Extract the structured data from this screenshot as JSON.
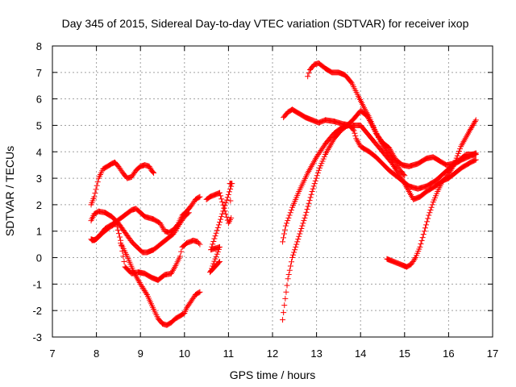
{
  "chart_data": {
    "type": "scatter",
    "title": "Day 345 of 2015, Sidereal Day-to-day VTEC variation (SDTVAR) for receiver ixop",
    "xlabel": "GPS time / hours",
    "ylabel": "SDTVAR / TECUs",
    "xlim": [
      7,
      17
    ],
    "ylim": [
      -3,
      8
    ],
    "xticks": [
      "7",
      "8",
      "9",
      "10",
      "11",
      "12",
      "13",
      "14",
      "15",
      "16",
      "17"
    ],
    "yticks": [
      "-3",
      "-2",
      "-1",
      "0",
      "1",
      "2",
      "3",
      "4",
      "5",
      "6",
      "7",
      "8"
    ],
    "grid": true,
    "legend": "none",
    "marker": "+",
    "series_color": "#ff0000",
    "tracks": [
      [
        [
          7.88,
          2.0
        ],
        [
          7.95,
          2.3
        ],
        [
          8.05,
          3.0
        ],
        [
          8.15,
          3.35
        ],
        [
          8.25,
          3.45
        ],
        [
          8.35,
          3.55
        ],
        [
          8.42,
          3.6
        ],
        [
          8.5,
          3.45
        ],
        [
          8.6,
          3.2
        ],
        [
          8.7,
          3.0
        ],
        [
          8.8,
          3.05
        ],
        [
          8.9,
          3.3
        ],
        [
          9.0,
          3.45
        ],
        [
          9.1,
          3.5
        ],
        [
          9.2,
          3.45
        ],
        [
          9.25,
          3.3
        ],
        [
          9.3,
          3.2
        ]
      ],
      [
        [
          7.88,
          0.7
        ],
        [
          7.95,
          0.65
        ],
        [
          8.05,
          0.8
        ],
        [
          8.2,
          1.1
        ],
        [
          8.4,
          1.3
        ],
        [
          8.6,
          1.55
        ],
        [
          8.8,
          1.8
        ],
        [
          8.9,
          1.85
        ],
        [
          9.0,
          1.7
        ],
        [
          9.1,
          1.55
        ],
        [
          9.2,
          1.5
        ],
        [
          9.3,
          1.45
        ],
        [
          9.45,
          1.3
        ],
        [
          9.55,
          1.0
        ],
        [
          9.65,
          0.95
        ],
        [
          9.75,
          1.05
        ],
        [
          9.85,
          1.25
        ],
        [
          9.95,
          1.6
        ],
        [
          10.05,
          1.75
        ],
        [
          10.15,
          1.95
        ],
        [
          10.25,
          2.2
        ],
        [
          10.35,
          2.3
        ]
      ],
      [
        [
          7.88,
          1.4
        ],
        [
          7.95,
          1.65
        ],
        [
          8.05,
          1.75
        ],
        [
          8.2,
          1.7
        ],
        [
          8.35,
          1.55
        ],
        [
          8.5,
          1.3
        ],
        [
          8.65,
          0.95
        ],
        [
          8.8,
          0.6
        ],
        [
          8.95,
          0.35
        ],
        [
          9.05,
          0.2
        ],
        [
          9.15,
          0.2
        ],
        [
          9.3,
          0.3
        ],
        [
          9.45,
          0.5
        ],
        [
          9.6,
          0.7
        ],
        [
          9.75,
          0.9
        ],
        [
          9.9,
          1.3
        ],
        [
          10.0,
          1.55
        ],
        [
          10.1,
          1.7
        ]
      ],
      [
        [
          7.9,
          0.65
        ],
        [
          8.0,
          0.7
        ],
        [
          8.15,
          0.95
        ],
        [
          8.3,
          1.15
        ],
        [
          8.45,
          1.3
        ],
        [
          8.55,
          0.65
        ],
        [
          8.65,
          -0.35
        ],
        [
          8.8,
          -0.6
        ],
        [
          8.95,
          -0.55
        ],
        [
          9.1,
          -0.6
        ],
        [
          9.25,
          -0.75
        ],
        [
          9.4,
          -0.85
        ],
        [
          9.55,
          -0.65
        ],
        [
          9.7,
          -0.6
        ],
        [
          9.8,
          -0.3
        ],
        [
          9.9,
          0.05
        ],
        [
          9.95,
          0.4
        ],
        [
          10.05,
          0.55
        ],
        [
          10.2,
          0.65
        ],
        [
          10.3,
          0.6
        ],
        [
          10.35,
          0.5
        ]
      ],
      [
        [
          8.55,
          0.55
        ],
        [
          8.7,
          0.05
        ],
        [
          8.85,
          -0.55
        ],
        [
          9.0,
          -1.0
        ],
        [
          9.15,
          -1.4
        ],
        [
          9.3,
          -1.95
        ],
        [
          9.4,
          -2.3
        ],
        [
          9.5,
          -2.5
        ],
        [
          9.6,
          -2.55
        ],
        [
          9.7,
          -2.45
        ],
        [
          9.8,
          -2.3
        ],
        [
          9.9,
          -2.2
        ],
        [
          10.0,
          -2.1
        ],
        [
          10.05,
          -1.9
        ],
        [
          10.15,
          -1.65
        ],
        [
          10.25,
          -1.4
        ],
        [
          10.35,
          -1.3
        ]
      ],
      [
        [
          10.5,
          2.2
        ],
        [
          10.58,
          2.3
        ],
        [
          10.8,
          2.45
        ],
        [
          11.0,
          1.3
        ],
        [
          11.06,
          1.5
        ],
        [
          11.03,
          2.8
        ],
        [
          11.08,
          2.8
        ],
        [
          10.6,
          0.3
        ],
        [
          10.8,
          0.4
        ],
        [
          10.6,
          -0.5
        ],
        [
          10.58,
          -0.55
        ],
        [
          10.8,
          -0.15
        ]
      ],
      [
        [
          12.23,
          -2.35
        ],
        [
          12.27,
          -1.8
        ],
        [
          12.35,
          -0.8
        ],
        [
          12.45,
          0.0
        ],
        [
          12.6,
          0.8
        ],
        [
          12.75,
          1.6
        ],
        [
          12.9,
          2.5
        ],
        [
          13.05,
          3.3
        ],
        [
          13.2,
          3.9
        ],
        [
          13.4,
          4.5
        ],
        [
          13.55,
          4.8
        ],
        [
          13.7,
          5.0
        ],
        [
          13.85,
          5.25
        ],
        [
          14.0,
          5.55
        ],
        [
          14.15,
          5.35
        ],
        [
          14.3,
          4.9
        ],
        [
          14.45,
          4.4
        ],
        [
          14.6,
          4.0
        ],
        [
          14.8,
          3.6
        ],
        [
          14.9,
          3.3
        ],
        [
          15.0,
          3.1
        ]
      ],
      [
        [
          12.23,
          0.6
        ],
        [
          12.3,
          1.2
        ],
        [
          12.45,
          1.9
        ],
        [
          12.6,
          2.5
        ],
        [
          12.8,
          3.2
        ],
        [
          13.0,
          3.8
        ],
        [
          13.2,
          4.3
        ],
        [
          13.4,
          4.7
        ],
        [
          13.6,
          4.95
        ],
        [
          13.75,
          5.0
        ],
        [
          13.85,
          4.8
        ],
        [
          13.9,
          4.5
        ],
        [
          14.0,
          4.2
        ],
        [
          14.2,
          4.0
        ],
        [
          14.35,
          3.8
        ],
        [
          14.5,
          3.55
        ],
        [
          14.65,
          3.3
        ],
        [
          14.8,
          3.1
        ],
        [
          14.95,
          2.9
        ],
        [
          15.1,
          2.7
        ],
        [
          15.3,
          2.6
        ],
        [
          15.5,
          2.7
        ],
        [
          15.7,
          2.9
        ],
        [
          15.9,
          3.2
        ],
        [
          16.1,
          3.5
        ],
        [
          16.3,
          3.7
        ],
        [
          16.5,
          3.85
        ],
        [
          16.62,
          3.9
        ]
      ],
      [
        [
          12.25,
          5.3
        ],
        [
          12.35,
          5.5
        ],
        [
          12.45,
          5.6
        ],
        [
          12.6,
          5.45
        ],
        [
          12.75,
          5.3
        ],
        [
          12.9,
          5.2
        ],
        [
          13.05,
          5.1
        ],
        [
          13.2,
          5.2
        ],
        [
          13.4,
          5.15
        ],
        [
          13.6,
          5.05
        ],
        [
          13.8,
          5.0
        ],
        [
          14.0,
          5.0
        ],
        [
          14.15,
          4.7
        ],
        [
          14.3,
          4.4
        ],
        [
          14.5,
          4.0
        ],
        [
          14.7,
          3.6
        ],
        [
          14.85,
          3.2
        ],
        [
          15.0,
          2.8
        ],
        [
          15.1,
          2.5
        ],
        [
          15.2,
          2.2
        ],
        [
          15.35,
          2.3
        ],
        [
          15.5,
          2.5
        ],
        [
          15.7,
          2.7
        ],
        [
          15.85,
          2.9
        ],
        [
          16.0,
          3.0
        ],
        [
          16.15,
          3.2
        ],
        [
          16.3,
          3.4
        ],
        [
          16.5,
          3.6
        ],
        [
          16.62,
          3.7
        ]
      ],
      [
        [
          12.8,
          6.85
        ],
        [
          12.85,
          7.1
        ],
        [
          12.95,
          7.3
        ],
        [
          13.05,
          7.35
        ],
        [
          13.2,
          7.15
        ],
        [
          13.35,
          7.0
        ],
        [
          13.5,
          7.0
        ],
        [
          13.65,
          6.9
        ],
        [
          13.8,
          6.6
        ],
        [
          13.95,
          6.1
        ],
        [
          14.1,
          5.6
        ],
        [
          14.2,
          5.3
        ],
        [
          14.35,
          4.7
        ],
        [
          14.5,
          4.35
        ],
        [
          14.65,
          4.15
        ],
        [
          14.8,
          3.7
        ],
        [
          14.95,
          3.5
        ],
        [
          15.1,
          3.45
        ],
        [
          15.3,
          3.55
        ],
        [
          15.5,
          3.75
        ],
        [
          15.65,
          3.8
        ],
        [
          15.8,
          3.65
        ],
        [
          15.95,
          3.5
        ],
        [
          16.1,
          3.55
        ],
        [
          16.25,
          3.7
        ],
        [
          16.4,
          3.9
        ],
        [
          16.55,
          3.9
        ],
        [
          16.62,
          3.95
        ]
      ],
      [
        [
          14.6,
          -0.05
        ],
        [
          14.75,
          -0.15
        ],
        [
          14.9,
          -0.25
        ],
        [
          15.05,
          -0.35
        ],
        [
          15.15,
          -0.25
        ],
        [
          15.25,
          0.0
        ],
        [
          15.35,
          0.4
        ],
        [
          15.45,
          1.0
        ],
        [
          15.55,
          1.6
        ],
        [
          15.65,
          2.1
        ],
        [
          15.75,
          2.5
        ],
        [
          15.85,
          2.85
        ],
        [
          15.95,
          3.05
        ],
        [
          16.05,
          3.3
        ],
        [
          16.12,
          3.5
        ],
        [
          16.2,
          3.85
        ],
        [
          16.28,
          4.2
        ],
        [
          16.38,
          4.5
        ],
        [
          16.48,
          4.8
        ],
        [
          16.55,
          5.0
        ],
        [
          16.62,
          5.2
        ]
      ]
    ]
  }
}
